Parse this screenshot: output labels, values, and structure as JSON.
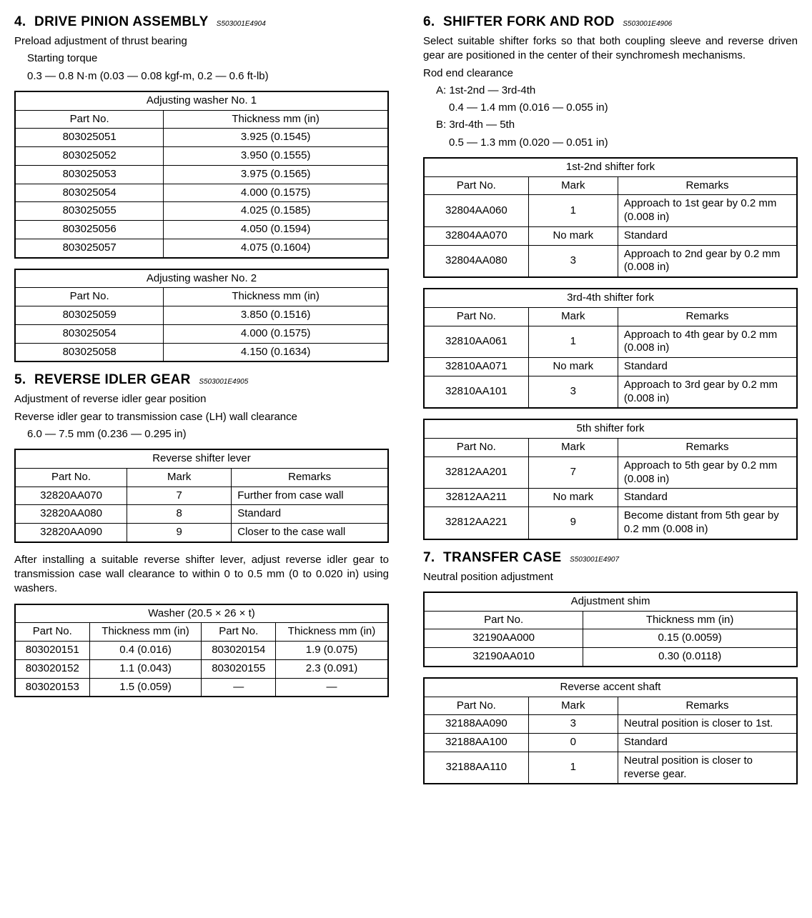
{
  "left": {
    "s4": {
      "num": "4.",
      "title": "DRIVE PINION ASSEMBLY",
      "code": "S503001E4904",
      "p1": "Preload adjustment of thrust bearing",
      "p2": "Starting torque",
      "p3": "0.3 — 0.8 N·m (0.03 — 0.08 kgf-m, 0.2 — 0.6 ft-lb)",
      "t1": {
        "caption": "Adjusting washer No. 1",
        "h1": "Part No.",
        "h2": "Thickness mm (in)",
        "rows": [
          [
            "803025051",
            "3.925 (0.1545)"
          ],
          [
            "803025052",
            "3.950 (0.1555)"
          ],
          [
            "803025053",
            "3.975 (0.1565)"
          ],
          [
            "803025054",
            "4.000 (0.1575)"
          ],
          [
            "803025055",
            "4.025 (0.1585)"
          ],
          [
            "803025056",
            "4.050 (0.1594)"
          ],
          [
            "803025057",
            "4.075 (0.1604)"
          ]
        ]
      },
      "t2": {
        "caption": "Adjusting washer No. 2",
        "h1": "Part No.",
        "h2": "Thickness mm (in)",
        "rows": [
          [
            "803025059",
            "3.850 (0.1516)"
          ],
          [
            "803025054",
            "4.000 (0.1575)"
          ],
          [
            "803025058",
            "4.150 (0.1634)"
          ]
        ]
      }
    },
    "s5": {
      "num": "5.",
      "title": "REVERSE IDLER GEAR",
      "code": "S503001E4905",
      "p1": "Adjustment of reverse idler gear position",
      "p2": "Reverse idler gear to transmission case (LH) wall clearance",
      "p3": "6.0 — 7.5 mm (0.236 — 0.295 in)",
      "t1": {
        "caption": "Reverse shifter lever",
        "h1": "Part No.",
        "h2": "Mark",
        "h3": "Remarks",
        "rows": [
          [
            "32820AA070",
            "7",
            "Further from case wall"
          ],
          [
            "32820AA080",
            "8",
            "Standard"
          ],
          [
            "32820AA090",
            "9",
            "Closer to the case wall"
          ]
        ]
      },
      "p4": "After installing a suitable reverse shifter lever, adjust reverse idler gear to transmission case wall clearance to within 0 to 0.5 mm (0 to 0.020 in) using washers.",
      "t2": {
        "caption": "Washer (20.5 × 26 × t)",
        "h1": "Part No.",
        "h2": "Thickness mm (in)",
        "h3": "Part No.",
        "h4": "Thickness mm (in)",
        "rows": [
          [
            "803020151",
            "0.4 (0.016)",
            "803020154",
            "1.9 (0.075)"
          ],
          [
            "803020152",
            "1.1 (0.043)",
            "803020155",
            "2.3 (0.091)"
          ],
          [
            "803020153",
            "1.5 (0.059)",
            "—",
            "—"
          ]
        ]
      }
    }
  },
  "right": {
    "s6": {
      "num": "6.",
      "title": "SHIFTER FORK AND ROD",
      "code": "S503001E4906",
      "p1": "Select suitable shifter forks so that both coupling sleeve and reverse driven gear are positioned in the center of their synchromesh mechanisms.",
      "p2": "Rod end clearance",
      "pA1": "A: 1st-2nd — 3rd-4th",
      "pA2": "0.4 — 1.4 mm (0.016 — 0.055 in)",
      "pB1": "B: 3rd-4th — 5th",
      "pB2": "0.5 — 1.3 mm (0.020 — 0.051 in)",
      "t1": {
        "caption": "1st-2nd shifter fork",
        "h1": "Part No.",
        "h2": "Mark",
        "h3": "Remarks",
        "rows": [
          [
            "32804AA060",
            "1",
            "Approach to 1st gear by 0.2 mm (0.008 in)"
          ],
          [
            "32804AA070",
            "No mark",
            "Standard"
          ],
          [
            "32804AA080",
            "3",
            "Approach to 2nd gear by 0.2 mm (0.008 in)"
          ]
        ]
      },
      "t2": {
        "caption": "3rd-4th shifter fork",
        "h1": "Part No.",
        "h2": "Mark",
        "h3": "Remarks",
        "rows": [
          [
            "32810AA061",
            "1",
            "Approach to 4th gear by 0.2 mm (0.008 in)"
          ],
          [
            "32810AA071",
            "No mark",
            "Standard"
          ],
          [
            "32810AA101",
            "3",
            "Approach to 3rd gear by 0.2 mm (0.008 in)"
          ]
        ]
      },
      "t3": {
        "caption": "5th shifter fork",
        "h1": "Part No.",
        "h2": "Mark",
        "h3": "Remarks",
        "rows": [
          [
            "32812AA201",
            "7",
            "Approach to 5th gear by 0.2 mm (0.008 in)"
          ],
          [
            "32812AA211",
            "No mark",
            "Standard"
          ],
          [
            "32812AA221",
            "9",
            "Become distant from 5th gear by 0.2 mm (0.008 in)"
          ]
        ]
      }
    },
    "s7": {
      "num": "7.",
      "title": "TRANSFER CASE",
      "code": "S503001E4907",
      "p1": "Neutral position adjustment",
      "t1": {
        "caption": "Adjustment shim",
        "h1": "Part No.",
        "h2": "Thickness mm (in)",
        "rows": [
          [
            "32190AA000",
            "0.15 (0.0059)"
          ],
          [
            "32190AA010",
            "0.30 (0.0118)"
          ]
        ]
      },
      "t2": {
        "caption": "Reverse accent shaft",
        "h1": "Part No.",
        "h2": "Mark",
        "h3": "Remarks",
        "rows": [
          [
            "32188AA090",
            "3",
            "Neutral position is closer to 1st."
          ],
          [
            "32188AA100",
            "0",
            "Standard"
          ],
          [
            "32188AA110",
            "1",
            "Neutral position is closer to reverse gear."
          ]
        ]
      }
    }
  }
}
